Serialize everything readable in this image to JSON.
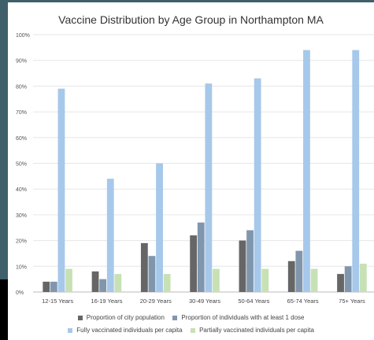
{
  "chart_data": {
    "type": "bar",
    "title": "Vaccine Distribution by Age Group in Northampton MA",
    "xlabel": "",
    "ylabel": "",
    "ylim": [
      0,
      100
    ],
    "yticks": [
      "0%",
      "10%",
      "20%",
      "30%",
      "40%",
      "50%",
      "60%",
      "70%",
      "80%",
      "90%",
      "100%"
    ],
    "categories": [
      "12-15 Years",
      "16-19 Years",
      "20-29 Years",
      "30-49 Years",
      "50-64 Years",
      "65-74 Years",
      "75+ Years"
    ],
    "series": [
      {
        "name": "Proportion of city population",
        "color": "#666666",
        "values": [
          4,
          8,
          19,
          22,
          20,
          12,
          7
        ]
      },
      {
        "name": "Proportion of individuals with at least 1 dose",
        "color": "#8096ad",
        "values": [
          4,
          5,
          14,
          27,
          24,
          16,
          10
        ]
      },
      {
        "name": "Fully vaccinated individuals per capita",
        "color": "#a6c8ea",
        "values": [
          79,
          44,
          50,
          81,
          83,
          94,
          94
        ]
      },
      {
        "name": "Partially vaccinated individuals per capita",
        "color": "#c7e1b5",
        "values": [
          9,
          7,
          7,
          9,
          9,
          9,
          11
        ]
      }
    ],
    "grid": true,
    "legend_position": "bottom"
  }
}
